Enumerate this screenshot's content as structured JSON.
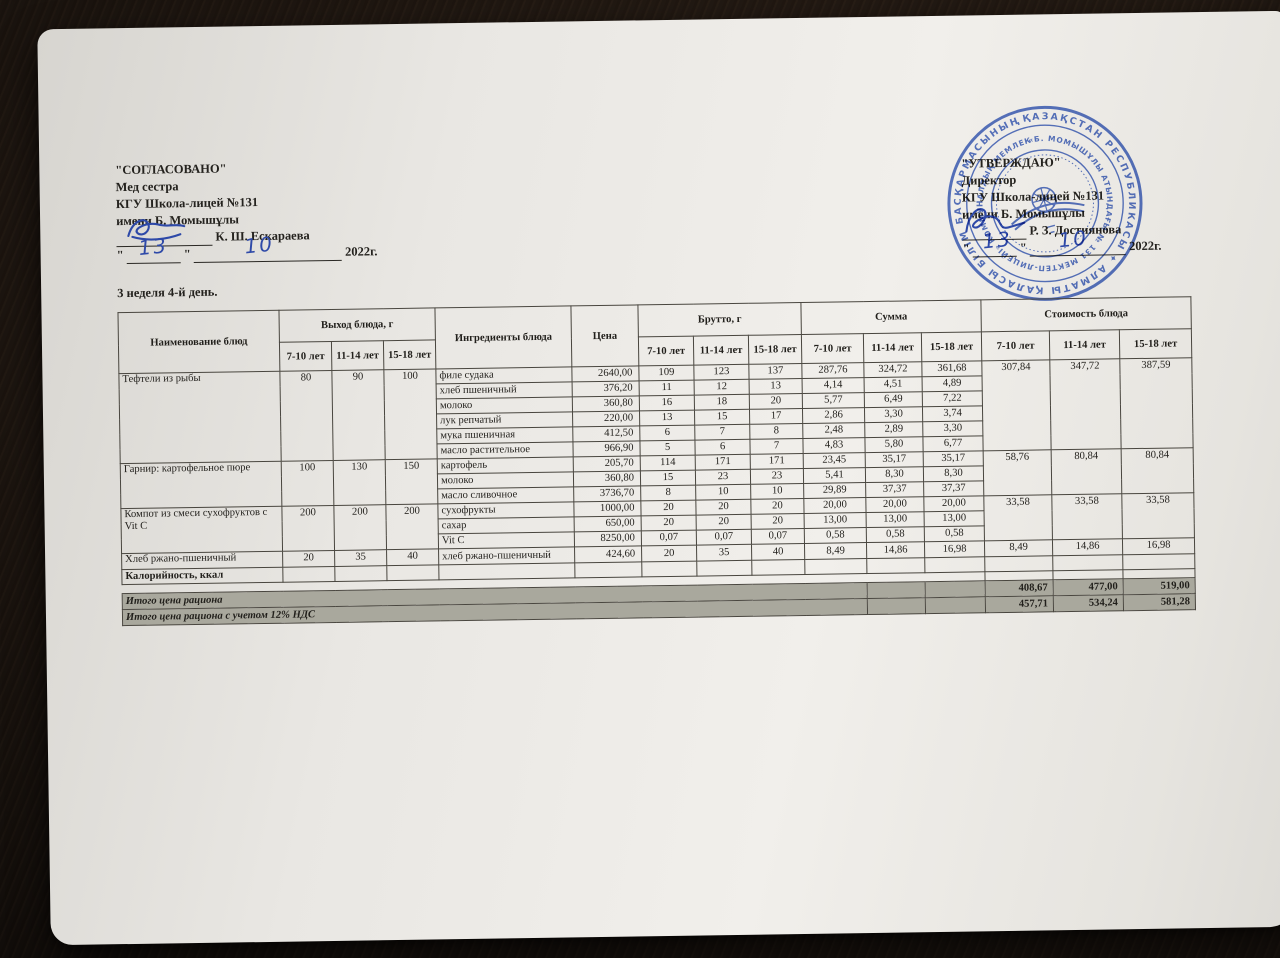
{
  "colors": {
    "stamp_blue": "#3c5fc0",
    "ink_blue": "#2e49a8",
    "totals_bg": "#a9a89d"
  },
  "left_block": {
    "title": "\"СОГЛАСОВАНО\"",
    "lines": [
      "Мед сестра",
      "КГУ Школа-лицей №131",
      "имени Б. Момышұлы"
    ],
    "signatory": "К. Ш. Ескараева",
    "quote": "\"",
    "day": "13",
    "month": "10",
    "year": "2022г."
  },
  "right_block": {
    "title": "\"УТВЕРЖДАЮ\"",
    "lines": [
      "Директор",
      "КГУ Школа-лицей №131",
      "имени Б. Момышұлы"
    ],
    "signatory": "Р. З. Достиянова",
    "quote": "\"",
    "day": "13",
    "month": "10",
    "year": "2022г."
  },
  "stamp": {
    "outer_text": "ҚАЗАҚСТАН РЕСПУБЛИКАСЫ ✦ АЛМАТЫ ҚАЛАСЫ БІЛІМ БАСҚАРМАСЫНЫҢ ✦",
    "inner_text": "«Б. МОМЫШҰЛЫ АТЫНДАҒЫ № 131 МЕКТЕП-ЛИЦЕЙІ» КОММУНАЛДЫҚ МЕМЛЕКЕТТІК МЕКЕМЕСІ"
  },
  "subtitle": "3 неделя 4-й день.",
  "table": {
    "headers": {
      "name": "Наименование блюд",
      "yield": "Выход блюда, г",
      "ingredients": "Ингредиенты блюда",
      "price": "Цена",
      "brutto": "Брутто, г",
      "summa": "Сумма",
      "cost": "Стоимость блюда"
    },
    "age_groups": [
      "7-10 лет",
      "11-14 лет",
      "15-18 лет"
    ],
    "dishes": [
      {
        "name": "Тефтели из рыбы",
        "yield": [
          "80",
          "90",
          "100"
        ],
        "cost": [
          "307,84",
          "347,72",
          "387,59"
        ],
        "ingredients": [
          {
            "name": "филе судака",
            "price": "2640,00",
            "brutto": [
              "109",
              "123",
              "137"
            ],
            "summa": [
              "287,76",
              "324,72",
              "361,68"
            ]
          },
          {
            "name": "хлеб пшеничный",
            "price": "376,20",
            "brutto": [
              "11",
              "12",
              "13"
            ],
            "summa": [
              "4,14",
              "4,51",
              "4,89"
            ]
          },
          {
            "name": "молоко",
            "price": "360,80",
            "brutto": [
              "16",
              "18",
              "20"
            ],
            "summa": [
              "5,77",
              "6,49",
              "7,22"
            ]
          },
          {
            "name": "лук репчатый",
            "price": "220,00",
            "brutto": [
              "13",
              "15",
              "17"
            ],
            "summa": [
              "2,86",
              "3,30",
              "3,74"
            ]
          },
          {
            "name": "мука пшеничная",
            "price": "412,50",
            "brutto": [
              "6",
              "7",
              "8"
            ],
            "summa": [
              "2,48",
              "2,89",
              "3,30"
            ]
          },
          {
            "name": "масло растительное",
            "price": "966,90",
            "brutto": [
              "5",
              "6",
              "7"
            ],
            "summa": [
              "4,83",
              "5,80",
              "6,77"
            ]
          }
        ]
      },
      {
        "name": "Гарнир:  картофельное пюре",
        "yield": [
          "100",
          "130",
          "150"
        ],
        "cost": [
          "58,76",
          "80,84",
          "80,84"
        ],
        "ingredients": [
          {
            "name": "картофель",
            "price": "205,70",
            "brutto": [
              "114",
              "171",
              "171"
            ],
            "summa": [
              "23,45",
              "35,17",
              "35,17"
            ]
          },
          {
            "name": "молоко",
            "price": "360,80",
            "brutto": [
              "15",
              "23",
              "23"
            ],
            "summa": [
              "5,41",
              "8,30",
              "8,30"
            ]
          },
          {
            "name": "масло сливочное",
            "price": "3736,70",
            "brutto": [
              "8",
              "10",
              "10"
            ],
            "summa": [
              "29,89",
              "37,37",
              "37,37"
            ]
          }
        ]
      },
      {
        "name": "Компот из смеси сухофруктов с Vit C",
        "yield": [
          "200",
          "200",
          "200"
        ],
        "cost": [
          "33,58",
          "33,58",
          "33,58"
        ],
        "ingredients": [
          {
            "name": "сухофрукты",
            "price": "1000,00",
            "brutto": [
              "20",
              "20",
              "20"
            ],
            "summa": [
              "20,00",
              "20,00",
              "20,00"
            ]
          },
          {
            "name": "сахар",
            "price": "650,00",
            "brutto": [
              "20",
              "20",
              "20"
            ],
            "summa": [
              "13,00",
              "13,00",
              "13,00"
            ]
          },
          {
            "name": "Vit C",
            "price": "8250,00",
            "brutto": [
              "0,07",
              "0,07",
              "0,07"
            ],
            "summa": [
              "0,58",
              "0,58",
              "0,58"
            ]
          }
        ]
      },
      {
        "name": "Хлеб ржано-пшеничный",
        "yield": [
          "20",
          "35",
          "40"
        ],
        "cost": [
          "8,49",
          "14,86",
          "16,98"
        ],
        "ingredients": [
          {
            "name": "хлеб ржано-пшеничный",
            "price": "424,60",
            "brutto": [
              "20",
              "35",
              "40"
            ],
            "summa": [
              "8,49",
              "14,86",
              "16,98"
            ]
          }
        ]
      }
    ],
    "calories_label": "Калорийность, ккал",
    "totals": [
      {
        "label": "Итого цена рациона",
        "values": [
          "408,67",
          "477,00",
          "519,00"
        ]
      },
      {
        "label": "Итого цена рациона с учетом 12% НДС",
        "values": [
          "457,71",
          "534,24",
          "581,28"
        ]
      }
    ]
  }
}
